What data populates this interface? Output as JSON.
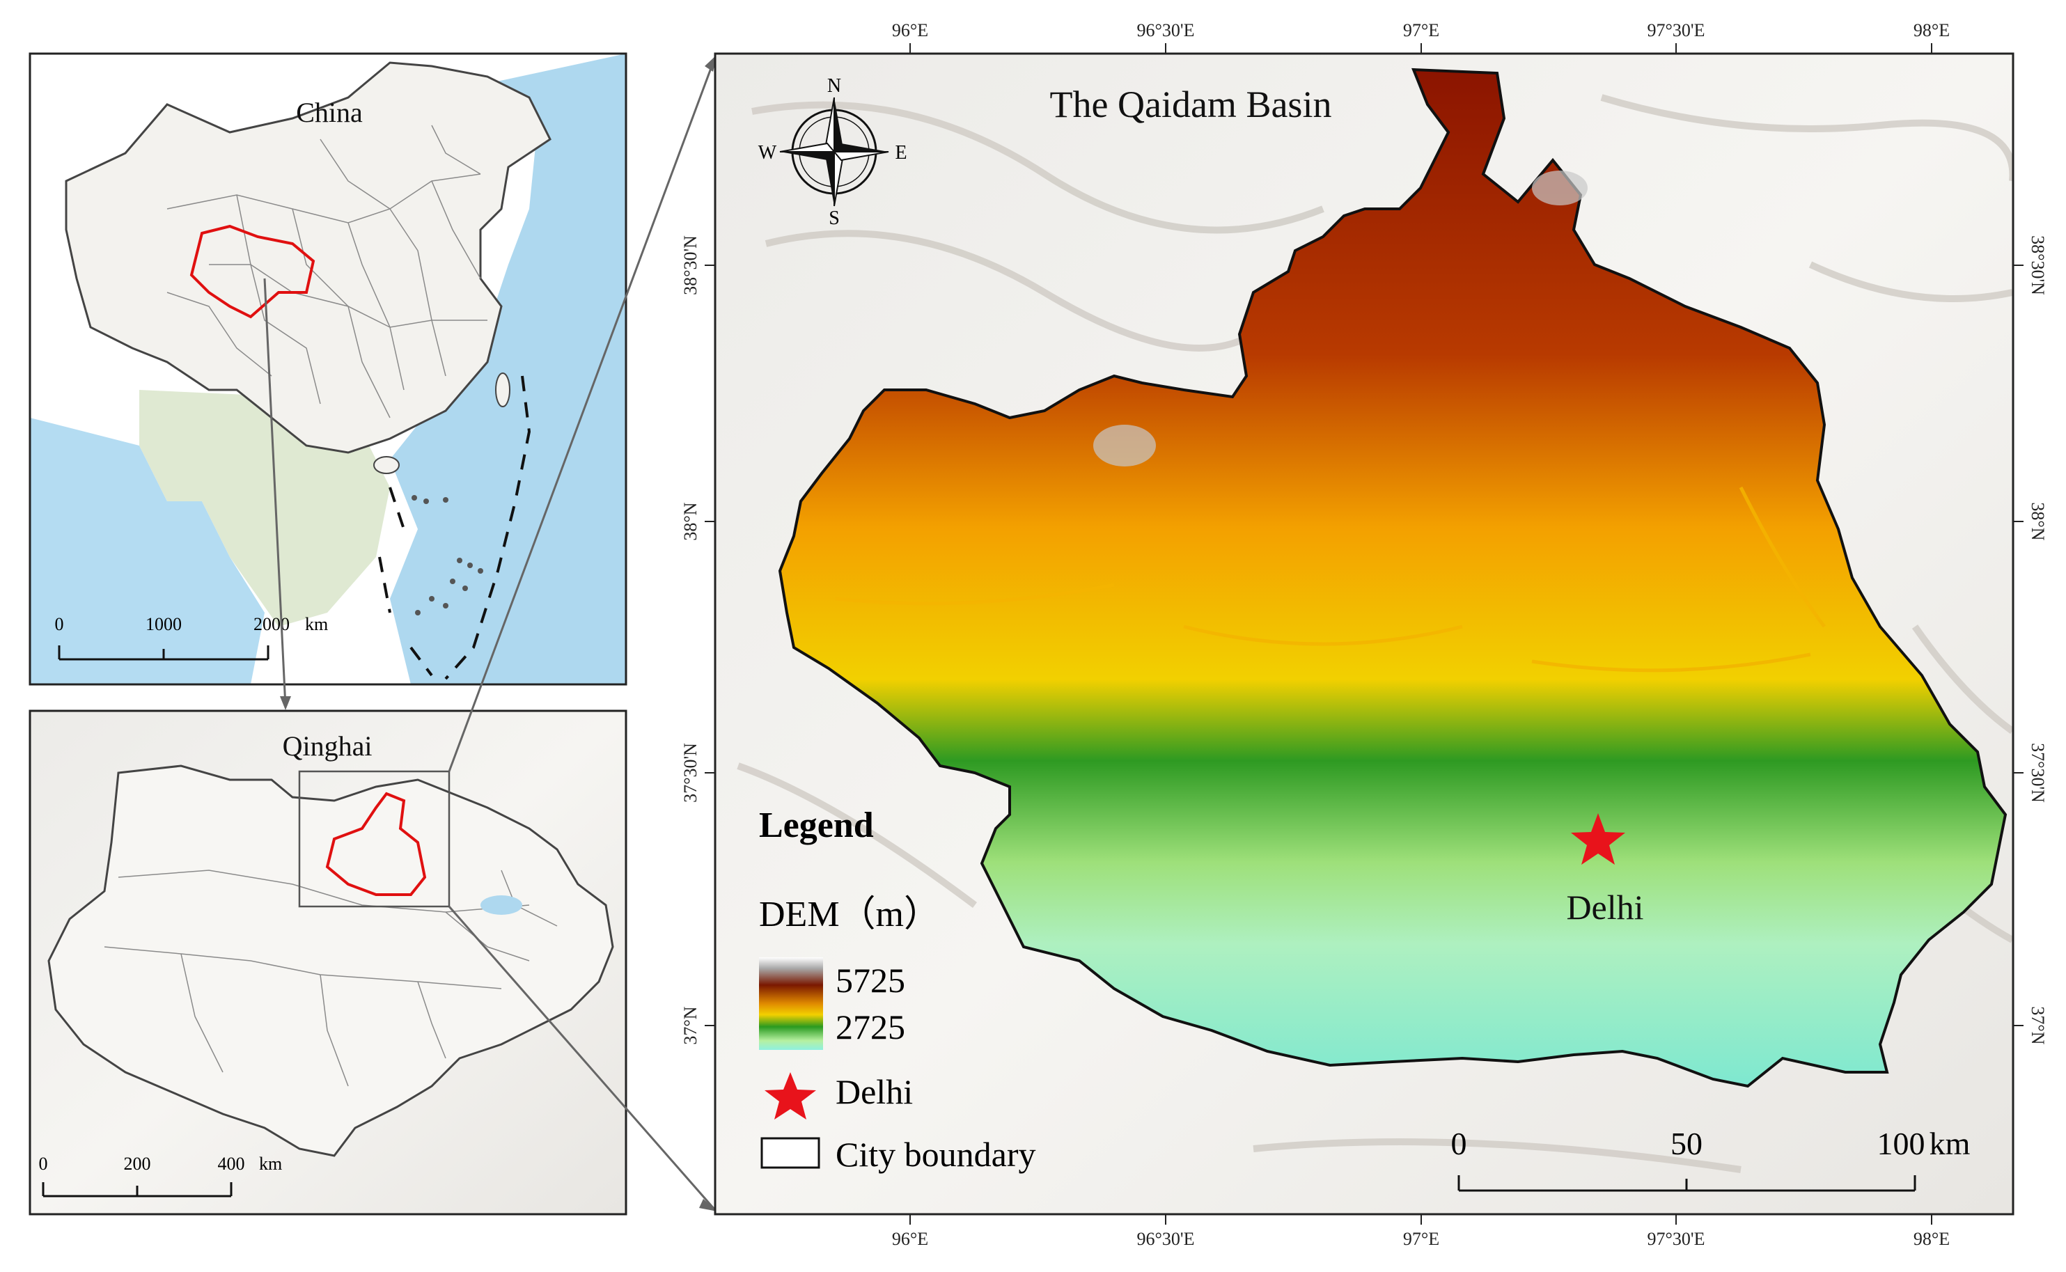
{
  "china_map": {
    "label": "China",
    "scale": {
      "ticks": [
        "0",
        "1000",
        "2000"
      ],
      "unit": "km"
    }
  },
  "qinghai_map": {
    "label": "Qinghai",
    "scale": {
      "ticks": [
        "0",
        "200",
        "400"
      ],
      "unit": "km"
    }
  },
  "main_map": {
    "title": "The Qaidam Basin",
    "compass": {
      "n": "N",
      "s": "S",
      "e": "E",
      "w": "W"
    },
    "lon_ticks": [
      "96°E",
      "96°30'E",
      "97°E",
      "97°30'E",
      "98°E"
    ],
    "lat_ticks": [
      "38°30'N",
      "38°N",
      "37°30'N",
      "37°N"
    ],
    "city_label": "Delhi",
    "scale": {
      "ticks": [
        "0",
        "50",
        "100"
      ],
      "unit": "km"
    }
  },
  "legend": {
    "title": "Legend",
    "dem_label": "DEM（m）",
    "dem_max": "5725",
    "dem_min": "2725",
    "star_label": "Delhi",
    "boundary_label": "City boundary"
  },
  "colors": {
    "dem_high": "#8b1500",
    "dem_mid": "#f5a000",
    "dem_green": "#2e9a22",
    "dem_low": "#7ee8c8",
    "star": "#e8131b",
    "boundary_red": "#e01010",
    "ocean": "#aed8ef"
  }
}
